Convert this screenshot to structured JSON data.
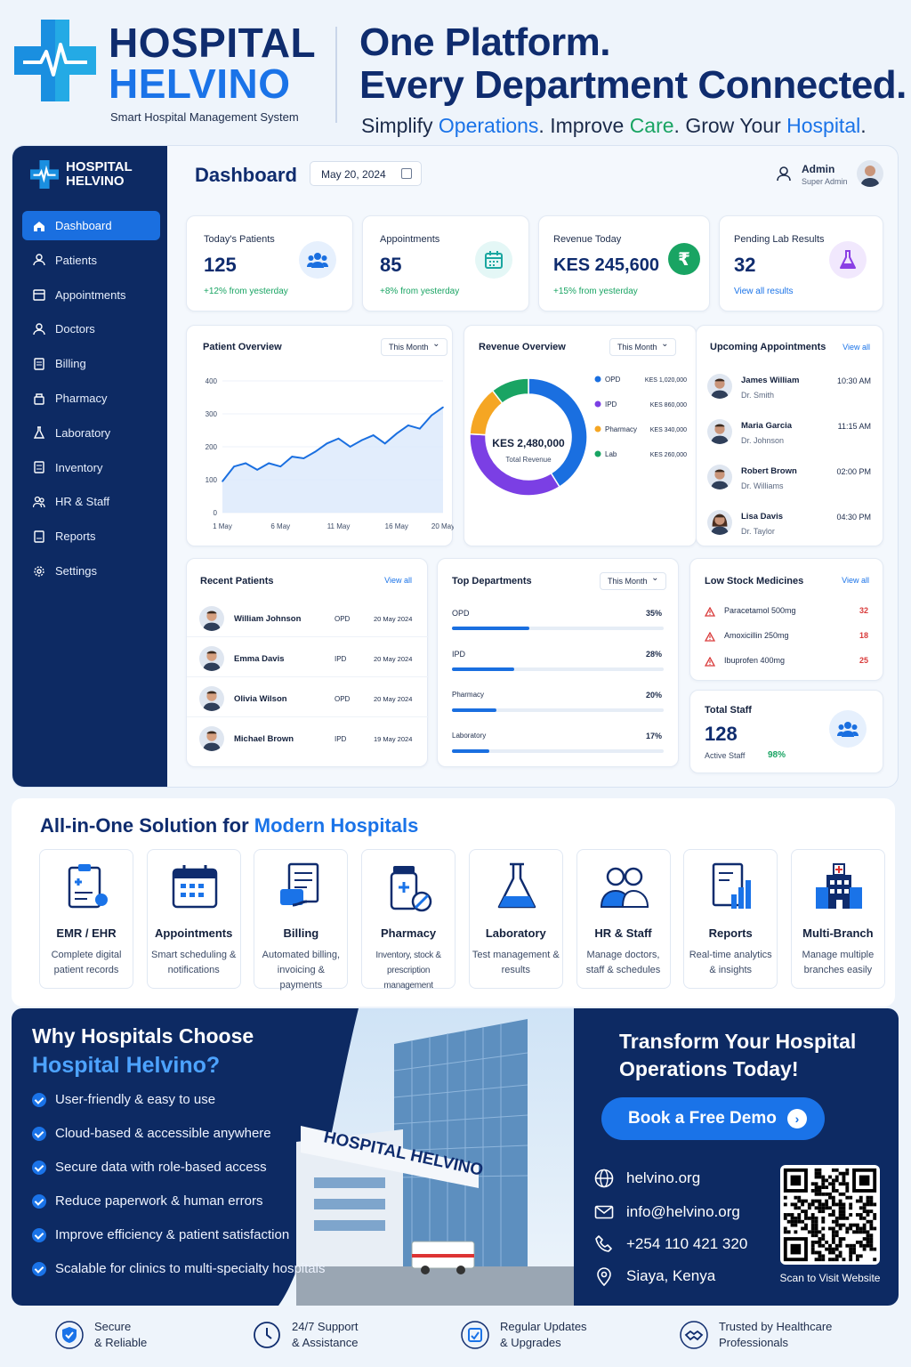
{
  "brand": {
    "name_top": "HOSPITAL",
    "name_bottom": "HELVINO",
    "subtitle": "Smart Hospital Management System"
  },
  "headline": {
    "line1": "One Platform.",
    "line2": "Every Department Connected.",
    "tag_p1": "Simplify",
    "tag_w1": "Operations",
    "tag_p2": ". Improve",
    "tag_w2": "Care",
    "tag_p3": ". Grow Your",
    "tag_w3": "Hospital",
    "tag_p4": "."
  },
  "sidebar": {
    "brand_top": "HOSPITAL",
    "brand_bottom": "HELVINO",
    "items": [
      {
        "label": "Dashboard",
        "icon": "home-icon"
      },
      {
        "label": "Patients",
        "icon": "user-icon"
      },
      {
        "label": "Appointments",
        "icon": "calendar-icon"
      },
      {
        "label": "Doctors",
        "icon": "doctor-icon"
      },
      {
        "label": "Billing",
        "icon": "billing-icon"
      },
      {
        "label": "Pharmacy",
        "icon": "pharmacy-icon"
      },
      {
        "label": "Laboratory",
        "icon": "flask-icon"
      },
      {
        "label": "Inventory",
        "icon": "inventory-icon"
      },
      {
        "label": "HR & Staff",
        "icon": "staff-icon"
      },
      {
        "label": "Reports",
        "icon": "reports-icon"
      },
      {
        "label": "Settings",
        "icon": "gear-icon"
      }
    ]
  },
  "topbar": {
    "title": "Dashboard",
    "date": "May 20, 2024",
    "user_name": "Admin",
    "user_role": "Super Admin"
  },
  "kpis": [
    {
      "label": "Today's Patients",
      "value": "125",
      "note": "+12% from yesterday"
    },
    {
      "label": "Appointments",
      "value": "85",
      "note": "+8% from yesterday"
    },
    {
      "label": "Revenue Today",
      "value": "KES 245,600",
      "note": "+15% from yesterday"
    },
    {
      "label": "Pending Lab Results",
      "value": "32",
      "note": "View all results"
    }
  ],
  "patient_overview": {
    "title": "Patient Overview",
    "filter": "This Month"
  },
  "revenue_overview": {
    "title": "Revenue Overview",
    "filter": "This Month",
    "center_value": "KES 2,480,000",
    "center_label": "Total Revenue"
  },
  "upcoming": {
    "title": "Upcoming Appointments",
    "view_all": "View all",
    "items": [
      {
        "name": "James William",
        "doctor": "Dr. Smith",
        "time": "10:30 AM"
      },
      {
        "name": "Maria Garcia",
        "doctor": "Dr. Johnson",
        "time": "11:15 AM"
      },
      {
        "name": "Robert Brown",
        "doctor": "Dr. Williams",
        "time": "02:00 PM"
      },
      {
        "name": "Lisa Davis",
        "doctor": "Dr. Taylor",
        "time": "04:30 PM"
      }
    ]
  },
  "recent_patients": {
    "title": "Recent Patients",
    "view_all": "View all",
    "items": [
      {
        "name": "William Johnson",
        "type": "OPD",
        "date": "20 May 2024"
      },
      {
        "name": "Emma Davis",
        "type": "IPD",
        "date": "20 May 2024"
      },
      {
        "name": "Olivia Wilson",
        "type": "OPD",
        "date": "20 May 2024"
      },
      {
        "name": "Michael Brown",
        "type": "IPD",
        "date": "19 May 2024"
      }
    ]
  },
  "top_departments": {
    "title": "Top Departments",
    "filter": "This Month",
    "items": [
      {
        "label": "OPD",
        "pct": "35%",
        "value": 35
      },
      {
        "label": "IPD",
        "pct": "28%",
        "value": 28
      },
      {
        "label": "Pharmacy",
        "pct": "20%",
        "value": 20
      },
      {
        "label": "Laboratory",
        "pct": "17%",
        "value": 17
      }
    ]
  },
  "low_stock": {
    "title": "Low Stock Medicines",
    "view_all": "View all",
    "items": [
      {
        "name": "Paracetamol 500mg",
        "qty": "32"
      },
      {
        "name": "Amoxicillin 250mg",
        "qty": "18"
      },
      {
        "name": "Ibuprofen 400mg",
        "qty": "25"
      }
    ]
  },
  "total_staff": {
    "title": "Total Staff",
    "value": "128",
    "active_label": "Active Staff",
    "active_pct": "98%"
  },
  "chart_data": [
    {
      "type": "area",
      "title": "Patient Overview",
      "x": [
        "1 May",
        "2 May",
        "3 May",
        "4 May",
        "5 May",
        "6 May",
        "7 May",
        "8 May",
        "9 May",
        "10 May",
        "11 May",
        "12 May",
        "13 May",
        "14 May",
        "15 May",
        "16 May",
        "17 May",
        "18 May",
        "19 May",
        "20 May"
      ],
      "x_tick_labels": [
        "1 May",
        "6 May",
        "11 May",
        "16 May",
        "20 May"
      ],
      "values": [
        95,
        140,
        150,
        130,
        150,
        140,
        170,
        165,
        185,
        210,
        225,
        200,
        220,
        235,
        210,
        240,
        265,
        255,
        295,
        320
      ],
      "ylim": [
        0,
        400
      ],
      "y_ticks": [
        "400",
        "300",
        "200",
        "100",
        "0"
      ],
      "color": "#1a6fe0"
    },
    {
      "type": "pie",
      "title": "Revenue Overview",
      "categories": [
        "OPD",
        "IPD",
        "Pharmacy",
        "Lab"
      ],
      "value_labels": [
        "KES 1,020,000",
        "KES 860,000",
        "KES 340,000",
        "KES 260,000"
      ],
      "values": [
        1020000,
        860000,
        340000,
        260000
      ],
      "colors": [
        "#1a6fe0",
        "#7b3fe4",
        "#f5a623",
        "#19a463"
      ]
    }
  ],
  "features": {
    "title_p1": "All-in-One Solution for",
    "title_hl": "Modern Hospitals",
    "items": [
      {
        "name": "EMR / EHR",
        "desc": "Complete digital patient records"
      },
      {
        "name": "Appointments",
        "desc": "Smart scheduling & notifications"
      },
      {
        "name": "Billing",
        "desc": "Automated billing, invoicing & payments"
      },
      {
        "name": "Pharmacy",
        "desc": "Inventory, stock & prescription management"
      },
      {
        "name": "Laboratory",
        "desc": "Test management & results"
      },
      {
        "name": "HR & Staff",
        "desc": "Manage doctors, staff & schedules"
      },
      {
        "name": "Reports",
        "desc": "Real-time analytics & insights"
      },
      {
        "name": "Multi-Branch",
        "desc": "Manage multiple branches easily"
      }
    ]
  },
  "why": {
    "title1": "Why Hospitals Choose",
    "title2": "Hospital Helvino?",
    "building_sign": "HOSPITAL HELVINO",
    "items": [
      "User-friendly & easy to use",
      "Cloud-based & accessible anywhere",
      "Secure data with role-based access",
      "Reduce paperwork & human errors",
      "Improve efficiency & patient satisfaction",
      "Scalable for clinics to multi-specialty hospitals"
    ]
  },
  "cta": {
    "title": "Transform Your Hospital Operations Today!",
    "button": "Book a Free Demo",
    "website": "helvino.org",
    "email": "info@helvino.org",
    "phone": "+254 110 421 320",
    "location": "Siaya, Kenya",
    "qr_caption": "Scan to Visit Website"
  },
  "footer": [
    {
      "line1": "Secure",
      "line2": "& Reliable"
    },
    {
      "line1": "24/7 Support",
      "line2": "& Assistance"
    },
    {
      "line1": "Regular Updates",
      "line2": "& Upgrades"
    },
    {
      "line1": "Trusted by Healthcare",
      "line2": "Professionals"
    }
  ],
  "colors": {
    "navy": "#0d2a63",
    "primary": "#1a73e8",
    "green": "#19a463"
  }
}
